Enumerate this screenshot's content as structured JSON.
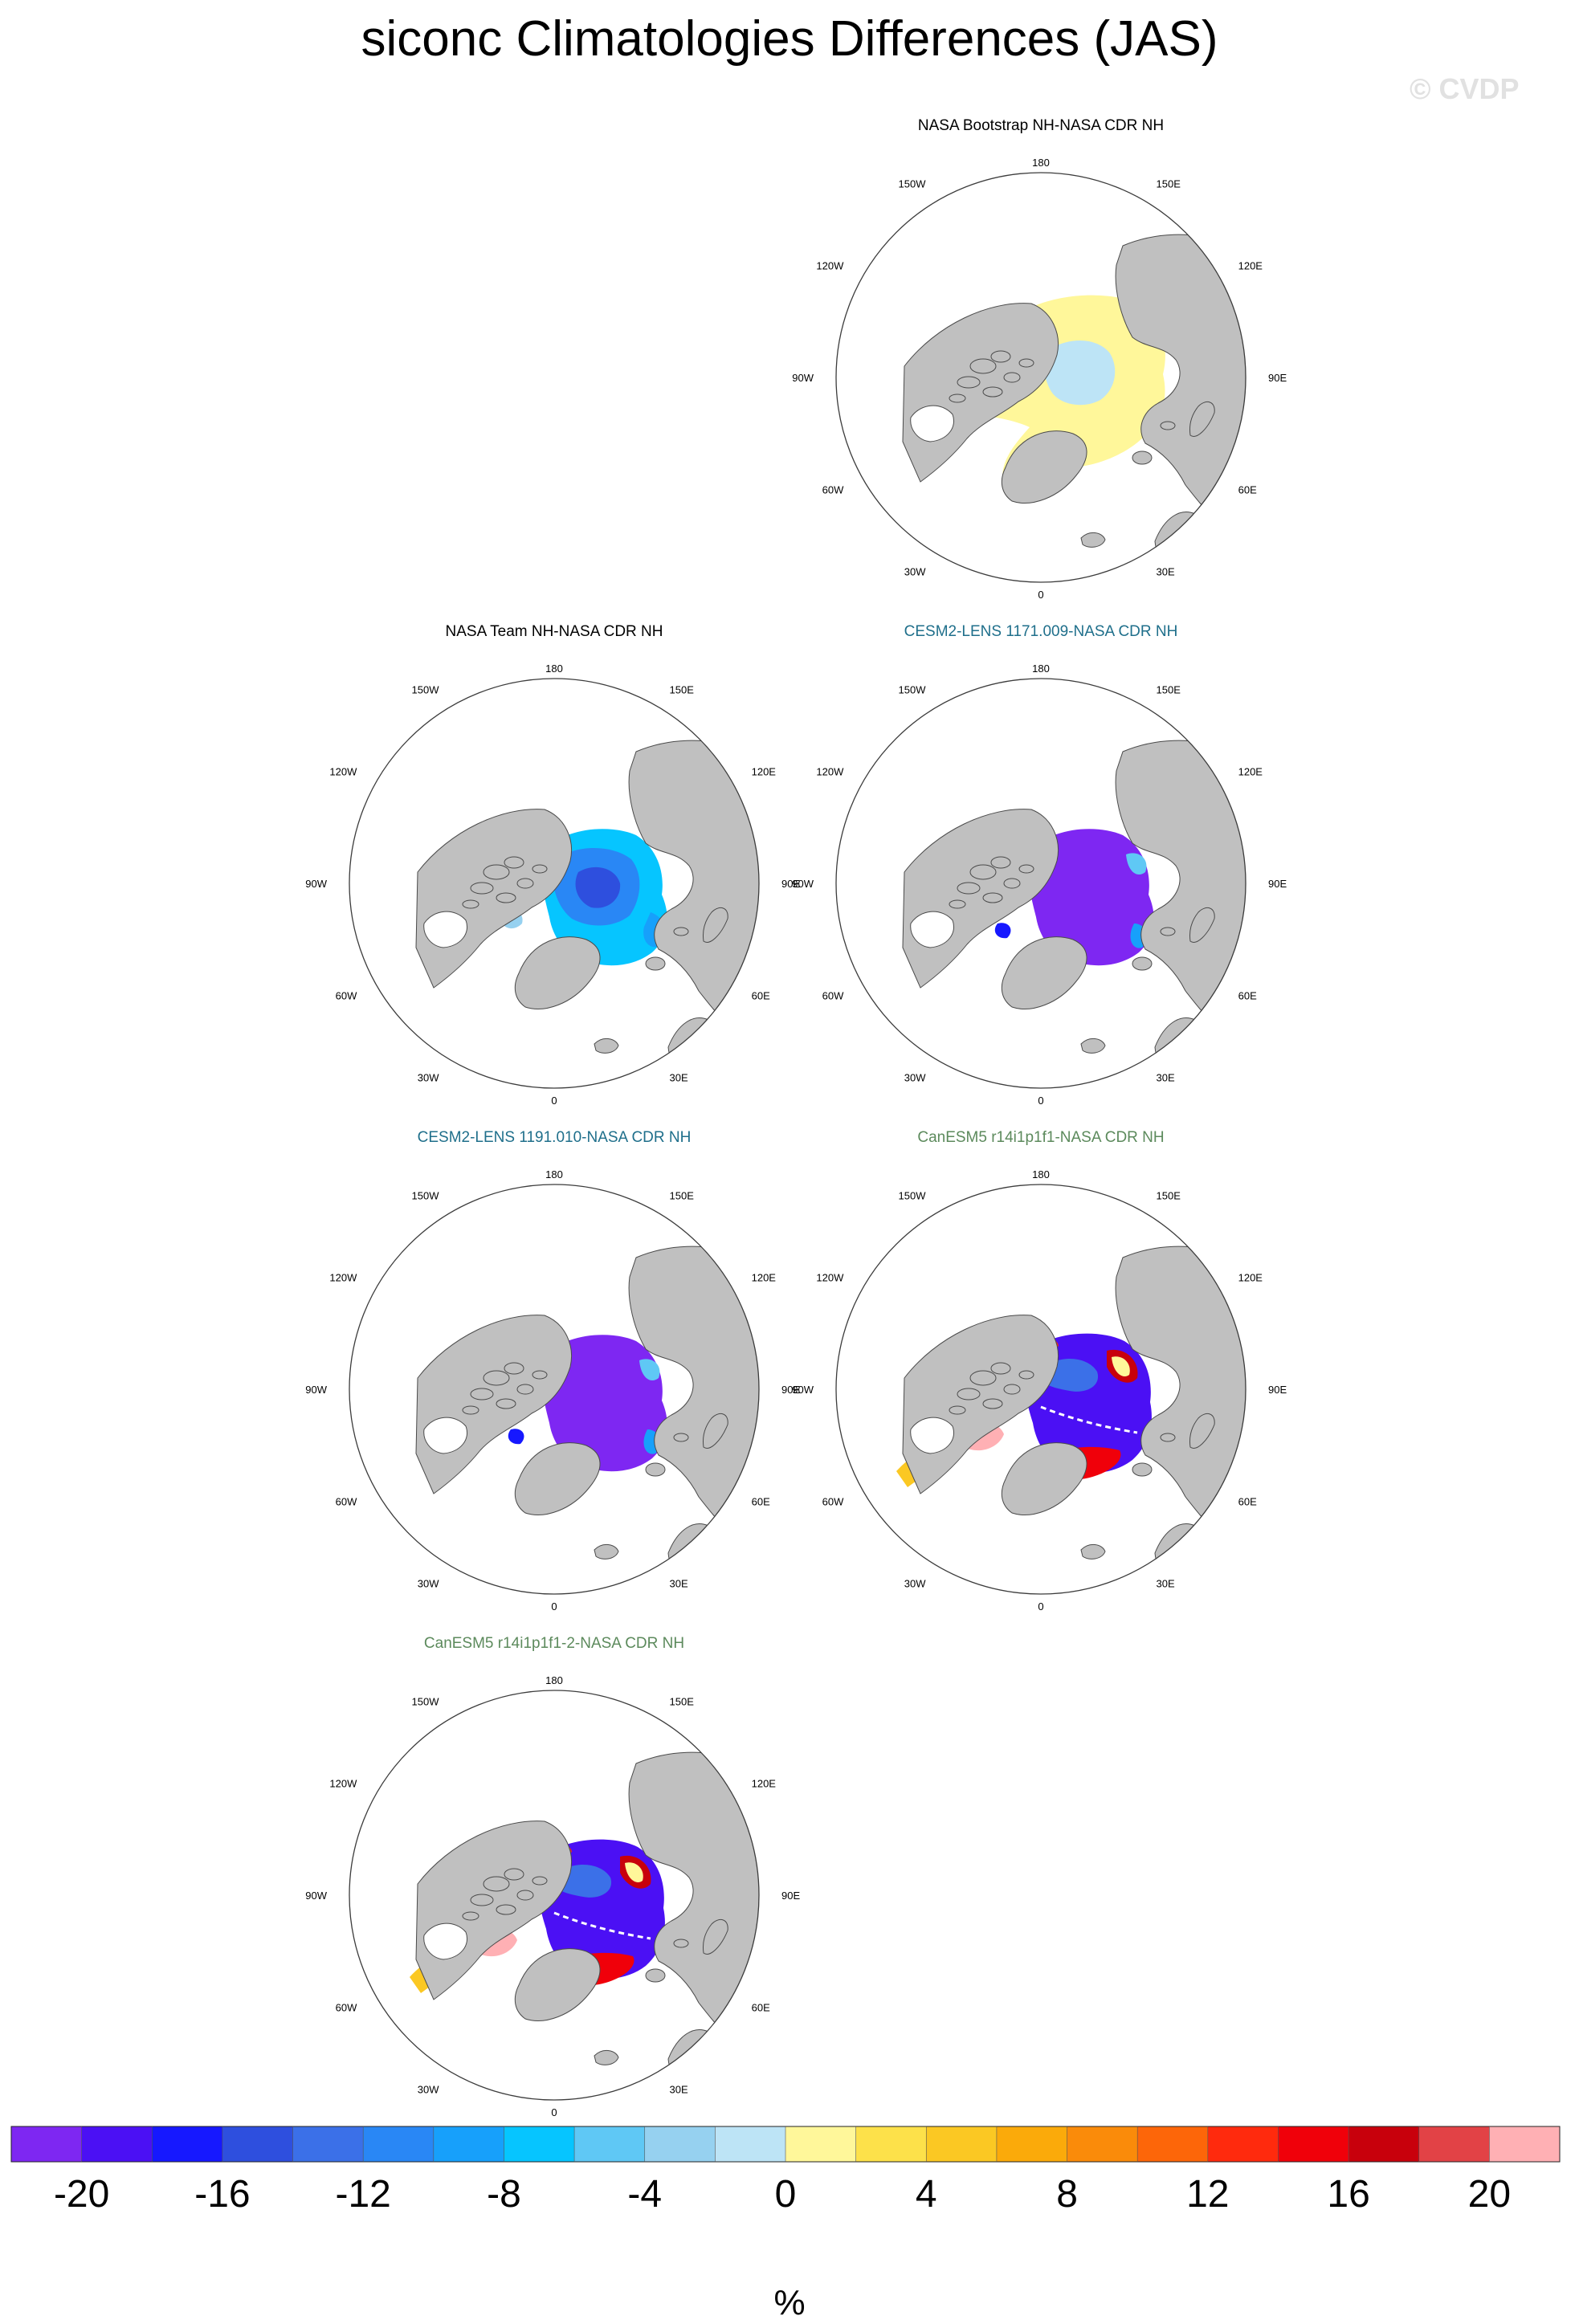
{
  "title": "siconc Climatologies Differences (JAS)",
  "watermark": "© CVDP",
  "colorbar": {
    "colors": [
      "#7e27f2",
      "#4b10f4",
      "#1618ff",
      "#2e4fde",
      "#3b70e8",
      "#2987f5",
      "#17a0fb",
      "#06c5ff",
      "#5fc8f5",
      "#96d1f0",
      "#bde4f6",
      "#fff79a",
      "#fde14a",
      "#fbc823",
      "#fbaa0a",
      "#fa8b0a",
      "#fd6609",
      "#ff2a0d",
      "#f0000a",
      "#c8000c",
      "#e24246",
      "#ffb0b4"
    ],
    "tick_labels": [
      "-20",
      "-16",
      "-12",
      "-8",
      "-4",
      "0",
      "4",
      "8",
      "12",
      "16",
      "20"
    ],
    "units": "%"
  },
  "map_labels": {
    "top": "180",
    "bottom": "0",
    "left": [
      "150W",
      "120W",
      "90W",
      "60W",
      "30W"
    ],
    "right": [
      "150E",
      "120E",
      "90E",
      "60E",
      "30E"
    ]
  },
  "panels": [
    {
      "title": "NASA Bootstrap NH-NASA CDR NH",
      "title_color": "#000000",
      "style": "bootstrap"
    },
    {
      "title": "NASA Team NH-NASA CDR NH",
      "title_color": "#000000",
      "style": "team"
    },
    {
      "title": "CESM2-LENS 1171.009-NASA CDR NH",
      "title_color": "#1f6f8b",
      "style": "cesm"
    },
    {
      "title": "CESM2-LENS 1191.010-NASA CDR NH",
      "title_color": "#1f6f8b",
      "style": "cesm"
    },
    {
      "title": "CanESM5 r14i1p1f1-NASA CDR NH",
      "title_color": "#5c8a5c",
      "style": "canesm"
    },
    {
      "title": "CanESM5 r14i1p1f1-2-NASA CDR NH",
      "title_color": "#5c8a5c",
      "style": "canesm"
    }
  ],
  "chart_data": {
    "type": "heatmap",
    "projection": "north polar stereographic",
    "variable": "siconc",
    "season": "JAS",
    "units": "%",
    "contour_levels": [
      -20,
      -18,
      -16,
      -14,
      -12,
      -10,
      -8,
      -6,
      -4,
      -2,
      0,
      2,
      4,
      6,
      8,
      10,
      12,
      14,
      16,
      18,
      20
    ],
    "colorbar_range": [
      -20,
      20
    ]
  }
}
